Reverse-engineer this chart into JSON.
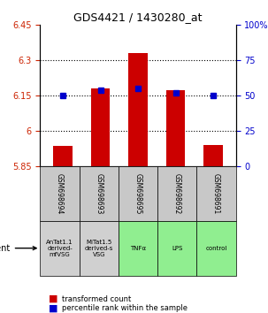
{
  "title": "GDS4421 / 1430280_at",
  "samples": [
    "GSM698694",
    "GSM698693",
    "GSM698695",
    "GSM698692",
    "GSM698691"
  ],
  "agents": [
    "AnTat1.1\nderived-\nmfVSG",
    "MiTat1.5\nderived-s\nVSG",
    "TNFα",
    "LPS",
    "control"
  ],
  "agent_colors": [
    "#d0d0d0",
    "#d0d0d0",
    "#90ee90",
    "#90ee90",
    "#90ee90"
  ],
  "bar_colors_red": "#cc0000",
  "bar_colors_blue": "#0000cc",
  "ylim_left": [
    5.85,
    6.45
  ],
  "ylim_right": [
    0,
    100
  ],
  "yticks_left": [
    5.85,
    6.0,
    6.15,
    6.3,
    6.45
  ],
  "yticks_right": [
    0,
    25,
    50,
    75,
    100
  ],
  "ytick_labels_left": [
    "5.85",
    "6",
    "6.15",
    "6.3",
    "6.45"
  ],
  "ytick_labels_right": [
    "0",
    "25",
    "50",
    "75",
    "100%"
  ],
  "red_values": [
    5.935,
    6.18,
    6.33,
    6.175,
    5.94
  ],
  "blue_values": [
    50.0,
    54.0,
    55.0,
    52.0,
    50.0
  ],
  "bar_width": 0.5,
  "baseline_red": 5.85,
  "baseline_blue": 0,
  "grid_yticks": [
    6.15,
    6.3,
    6.0
  ],
  "left_tick_color": "#cc2200",
  "right_tick_color": "#0000cc",
  "sample_bg_color": "#c8c8c8"
}
